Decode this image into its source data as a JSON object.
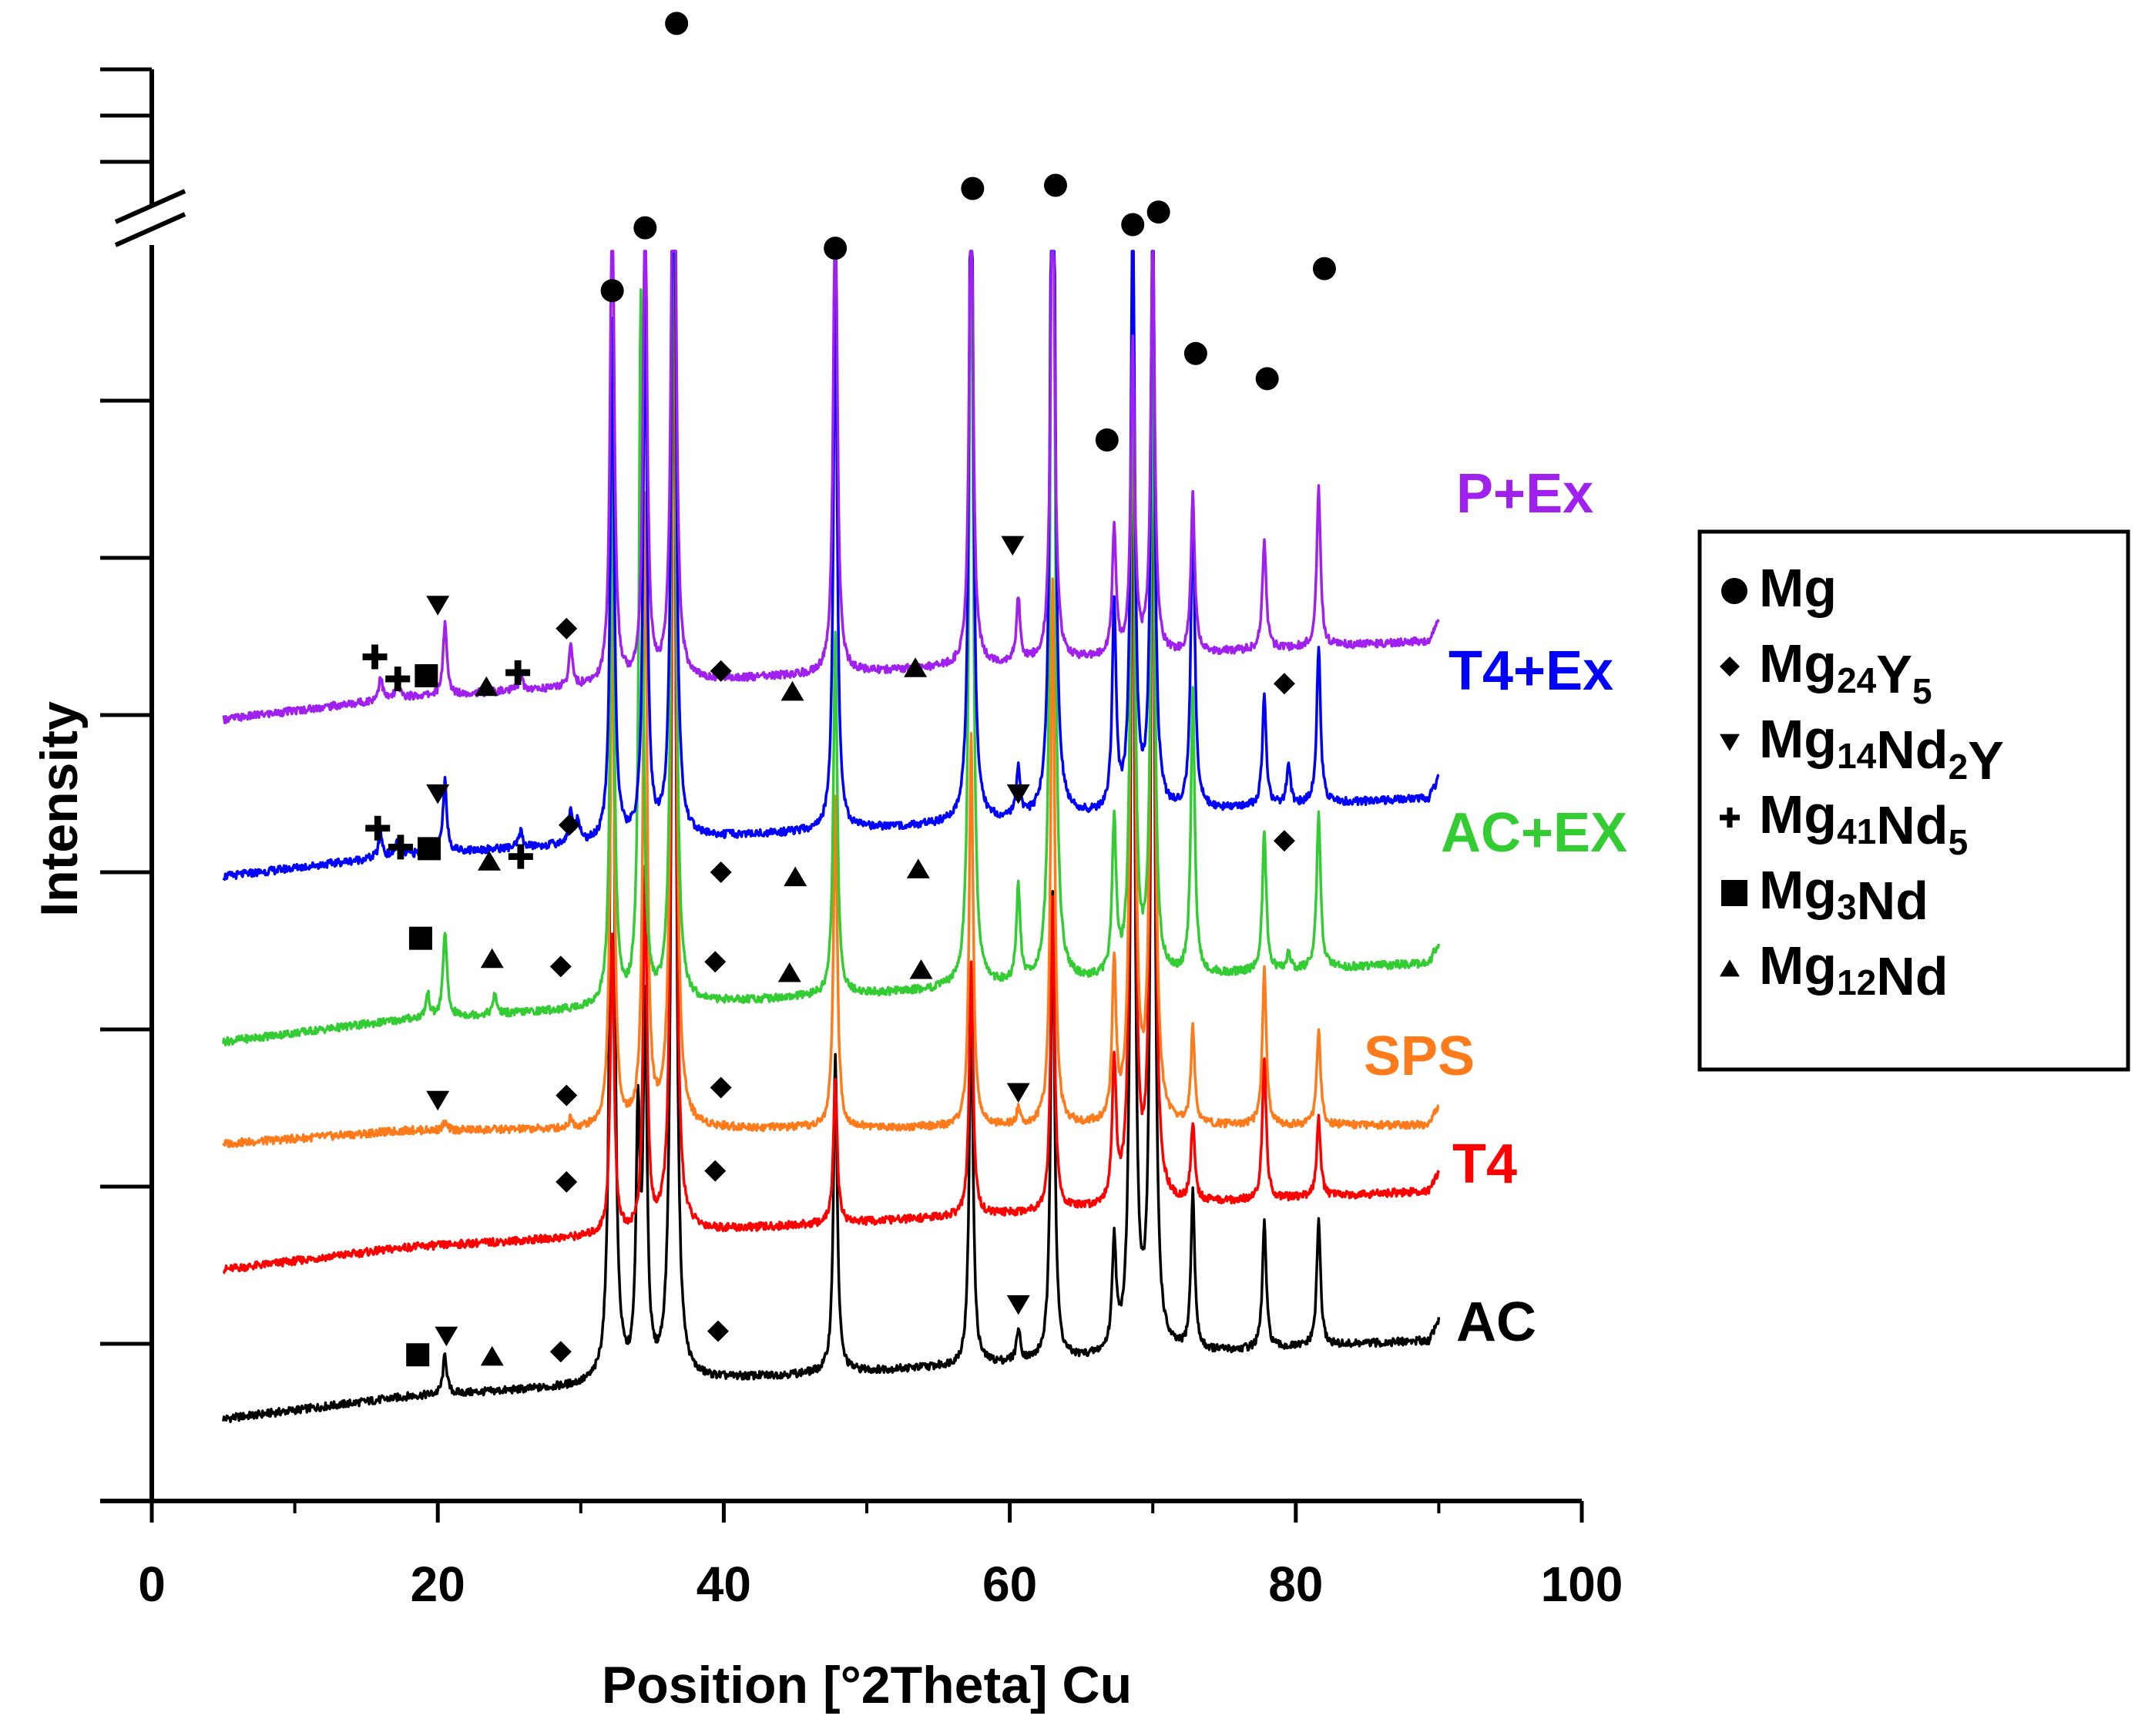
{
  "chart_data": {
    "type": "line",
    "title": "",
    "xlabel": "Position [°2Theta] Cu",
    "ylabel": "Intensity",
    "xlim": [
      0,
      100
    ],
    "xticks": [
      0,
      20,
      40,
      60,
      80,
      100
    ],
    "x_tick_labels": [
      "0",
      "20",
      "40",
      "60",
      "80",
      "100"
    ],
    "ylim": [
      0,
      10
    ],
    "y_axis_break": true,
    "y_axis_numbers_shown": false,
    "grid": false,
    "legend_position": "right",
    "legend": [
      {
        "symbol": "circle",
        "label": "Mg",
        "parts": [
          [
            "Mg",
            ""
          ]
        ]
      },
      {
        "symbol": "diamond",
        "label": "Mg24Y5",
        "parts": [
          [
            "Mg",
            "24"
          ],
          [
            "Y",
            "5"
          ]
        ]
      },
      {
        "symbol": "triangle-down",
        "label": "Mg14Nd2Y",
        "parts": [
          [
            "Mg",
            "14"
          ],
          [
            "Nd",
            "2"
          ],
          [
            "Y",
            ""
          ]
        ]
      },
      {
        "symbol": "plus",
        "label": "Mg41Nd5",
        "parts": [
          [
            "Mg",
            "41"
          ],
          [
            "Nd",
            "5"
          ]
        ]
      },
      {
        "symbol": "square",
        "label": "Mg3Nd",
        "parts": [
          [
            "Mg",
            "3"
          ],
          [
            "Nd",
            ""
          ]
        ]
      },
      {
        "symbol": "triangle-up",
        "label": "Mg12Nd",
        "parts": [
          [
            "Mg",
            "12"
          ],
          [
            "Nd",
            ""
          ]
        ]
      }
    ],
    "x_range": [
      5,
      90
    ],
    "series": [
      {
        "name": "AC",
        "color": "#000000",
        "baseline": 0.6,
        "slope": 0.005,
        "peaks": [
          [
            20.5,
            0.25
          ],
          [
            32.2,
            6.5
          ],
          [
            34.0,
            1.6
          ],
          [
            34.5,
            2.3
          ],
          [
            36.5,
            8.5
          ],
          [
            47.8,
            2.0
          ],
          [
            57.3,
            2.3
          ],
          [
            60.6,
            0.2
          ],
          [
            63.0,
            3.0
          ],
          [
            67.3,
            0.7
          ],
          [
            68.6,
            6.5
          ],
          [
            70.0,
            6.6
          ],
          [
            72.8,
            1.0
          ],
          [
            77.8,
            0.8
          ],
          [
            81.6,
            0.8
          ]
        ]
      },
      {
        "name": "T4",
        "color": "#ff0000",
        "baseline": 1.55,
        "slope": 0.005,
        "peaks": [
          [
            32.2,
            1.9
          ],
          [
            34.5,
            2.3
          ],
          [
            36.5,
            7.0
          ],
          [
            47.8,
            0.9
          ],
          [
            57.3,
            1.6
          ],
          [
            63.0,
            2.0
          ],
          [
            67.3,
            0.9
          ],
          [
            68.6,
            6.0
          ],
          [
            70.0,
            6.0
          ],
          [
            72.8,
            0.5
          ],
          [
            77.8,
            0.9
          ],
          [
            81.6,
            0.5
          ]
        ]
      },
      {
        "name": "SPS",
        "color": "#ff7a1a",
        "baseline": 2.35,
        "slope": 0.0005,
        "peaks": [
          [
            20.5,
            0.05
          ],
          [
            29.3,
            0.06
          ],
          [
            32.2,
            3.5
          ],
          [
            34.5,
            4.0
          ],
          [
            36.5,
            8.0
          ],
          [
            47.8,
            2.1
          ],
          [
            57.3,
            2.5
          ],
          [
            60.6,
            0.1
          ],
          [
            63.0,
            3.5
          ],
          [
            67.3,
            1.0
          ],
          [
            68.6,
            6.0
          ],
          [
            70.0,
            6.0
          ],
          [
            72.8,
            0.6
          ],
          [
            77.8,
            1.0
          ],
          [
            81.6,
            0.6
          ]
        ]
      },
      {
        "name": "AC+EX",
        "color": "#33cc33",
        "baseline": 3.0,
        "slope": 0.005,
        "peaks": [
          [
            19.3,
            0.15
          ],
          [
            20.5,
            0.55
          ],
          [
            24.0,
            0.12
          ],
          [
            32.2,
            3.5
          ],
          [
            34.2,
            4.5
          ],
          [
            36.5,
            6.5
          ],
          [
            47.8,
            2.3
          ],
          [
            57.3,
            5.5
          ],
          [
            60.6,
            0.6
          ],
          [
            63.0,
            7.0
          ],
          [
            67.3,
            1.0
          ],
          [
            68.6,
            4.5
          ],
          [
            70.0,
            4.0
          ],
          [
            72.8,
            1.8
          ],
          [
            77.8,
            0.9
          ],
          [
            79.5,
            0.1
          ],
          [
            81.6,
            1.0
          ]
        ]
      },
      {
        "name": "T4+Ex",
        "color": "#0000ff",
        "baseline": 4.05,
        "slope": 0.005,
        "peaks": [
          [
            16.0,
            0.15
          ],
          [
            17.2,
            0.1
          ],
          [
            20.5,
            0.45
          ],
          [
            25.8,
            0.1
          ],
          [
            29.3,
            0.2
          ],
          [
            29.8,
            0.15
          ],
          [
            32.2,
            3.3
          ],
          [
            34.5,
            3.5
          ],
          [
            36.5,
            6.0
          ],
          [
            47.8,
            3.5
          ],
          [
            57.3,
            5.0
          ],
          [
            60.6,
            0.3
          ],
          [
            63.0,
            6.5
          ],
          [
            67.3,
            1.3
          ],
          [
            68.6,
            4.0
          ],
          [
            70.0,
            4.0
          ],
          [
            72.8,
            2.0
          ],
          [
            77.8,
            0.7
          ],
          [
            79.5,
            0.25
          ],
          [
            81.6,
            1.0
          ]
        ]
      },
      {
        "name": "P+Ex",
        "color": "#a020f0",
        "baseline": 5.05,
        "slope": 0.005,
        "peaks": [
          [
            16.0,
            0.15
          ],
          [
            17.2,
            0.1
          ],
          [
            20.5,
            0.45
          ],
          [
            25.8,
            0.1
          ],
          [
            29.3,
            0.25
          ],
          [
            32.2,
            3.4
          ],
          [
            34.5,
            3.3
          ],
          [
            36.5,
            5.2
          ],
          [
            47.8,
            3.3
          ],
          [
            57.3,
            3.3
          ],
          [
            60.6,
            0.4
          ],
          [
            63.0,
            3.5
          ],
          [
            67.3,
            0.8
          ],
          [
            68.6,
            2.0
          ],
          [
            70.0,
            2.7
          ],
          [
            72.8,
            1.0
          ],
          [
            77.8,
            0.7
          ],
          [
            81.6,
            1.0
          ]
        ]
      }
    ],
    "phase_markers": [
      {
        "series": "P+Ex",
        "markers": [
          {
            "symbol": "plus",
            "x": 15.6,
            "y": 5.37
          },
          {
            "symbol": "plus",
            "x": 17.2,
            "y": 5.23
          },
          {
            "symbol": "square",
            "x": 19.2,
            "y": 5.25
          },
          {
            "symbol": "triangle-down",
            "x": 20.0,
            "y": 5.7
          },
          {
            "symbol": "triangle-up",
            "x": 23.4,
            "y": 5.18
          },
          {
            "symbol": "plus",
            "x": 25.6,
            "y": 5.27
          },
          {
            "symbol": "diamond",
            "x": 29.0,
            "y": 5.55
          },
          {
            "symbol": "diamond",
            "x": 39.8,
            "y": 5.28
          },
          {
            "symbol": "triangle-up",
            "x": 44.8,
            "y": 5.15
          },
          {
            "symbol": "triangle-up",
            "x": 53.4,
            "y": 5.3
          },
          {
            "symbol": "triangle-down",
            "x": 60.2,
            "y": 6.08
          }
        ]
      },
      {
        "series": "T4+Ex",
        "markers": [
          {
            "symbol": "plus",
            "x": 15.8,
            "y": 4.28
          },
          {
            "symbol": "plus",
            "x": 17.4,
            "y": 4.16
          },
          {
            "symbol": "square",
            "x": 19.4,
            "y": 4.15
          },
          {
            "symbol": "triangle-down",
            "x": 20.0,
            "y": 4.5
          },
          {
            "symbol": "triangle-up",
            "x": 23.6,
            "y": 4.07
          },
          {
            "symbol": "plus",
            "x": 25.8,
            "y": 4.1
          },
          {
            "symbol": "diamond",
            "x": 29.2,
            "y": 4.3
          },
          {
            "symbol": "diamond",
            "x": 39.8,
            "y": 4.0
          },
          {
            "symbol": "triangle-up",
            "x": 45.0,
            "y": 3.97
          },
          {
            "symbol": "triangle-up",
            "x": 53.6,
            "y": 4.02
          },
          {
            "symbol": "triangle-down",
            "x": 60.6,
            "y": 4.5
          },
          {
            "symbol": "diamond",
            "x": 79.2,
            "y": 5.2
          }
        ]
      },
      {
        "series": "AC+EX",
        "markers": [
          {
            "symbol": "square",
            "x": 18.8,
            "y": 3.58
          },
          {
            "symbol": "triangle-up",
            "x": 23.8,
            "y": 3.45
          },
          {
            "symbol": "diamond",
            "x": 28.6,
            "y": 3.4
          },
          {
            "symbol": "diamond",
            "x": 39.4,
            "y": 3.43
          },
          {
            "symbol": "triangle-up",
            "x": 44.6,
            "y": 3.36
          },
          {
            "symbol": "triangle-up",
            "x": 53.8,
            "y": 3.38
          },
          {
            "symbol": "diamond",
            "x": 79.2,
            "y": 4.2
          }
        ]
      },
      {
        "series": "SPS",
        "markers": [
          {
            "symbol": "triangle-down",
            "x": 20.0,
            "y": 2.55
          },
          {
            "symbol": "diamond",
            "x": 29.0,
            "y": 2.58
          },
          {
            "symbol": "diamond",
            "x": 39.8,
            "y": 2.63
          },
          {
            "symbol": "triangle-down",
            "x": 60.6,
            "y": 2.6
          }
        ]
      },
      {
        "series": "T4",
        "markers": [
          {
            "symbol": "diamond",
            "x": 29.0,
            "y": 2.03
          },
          {
            "symbol": "diamond",
            "x": 39.4,
            "y": 2.1
          }
        ]
      },
      {
        "series": "AC",
        "markers": [
          {
            "symbol": "square",
            "x": 18.6,
            "y": 0.93
          },
          {
            "symbol": "triangle-down",
            "x": 20.6,
            "y": 1.05
          },
          {
            "symbol": "triangle-up",
            "x": 23.8,
            "y": 0.92
          },
          {
            "symbol": "diamond",
            "x": 28.6,
            "y": 0.95
          },
          {
            "symbol": "diamond",
            "x": 39.6,
            "y": 1.08
          },
          {
            "symbol": "triangle-down",
            "x": 60.6,
            "y": 1.25
          }
        ]
      },
      {
        "series": "Mg peaks",
        "markers": [
          {
            "symbol": "circle",
            "x": 32.2,
            "y": 7.7
          },
          {
            "symbol": "circle",
            "x": 34.5,
            "y": 8.1
          },
          {
            "symbol": "circle",
            "x": 36.7,
            "y": 9.4
          },
          {
            "symbol": "circle",
            "x": 47.8,
            "y": 7.97
          },
          {
            "symbol": "circle",
            "x": 57.4,
            "y": 8.35
          },
          {
            "symbol": "circle",
            "x": 63.2,
            "y": 8.37
          },
          {
            "symbol": "circle",
            "x": 66.8,
            "y": 6.75
          },
          {
            "symbol": "circle",
            "x": 68.6,
            "y": 8.12
          },
          {
            "symbol": "circle",
            "x": 70.4,
            "y": 8.2
          },
          {
            "symbol": "circle",
            "x": 73.0,
            "y": 7.3
          },
          {
            "symbol": "circle",
            "x": 78.0,
            "y": 7.14
          },
          {
            "symbol": "circle",
            "x": 82.0,
            "y": 7.84
          }
        ]
      }
    ]
  }
}
